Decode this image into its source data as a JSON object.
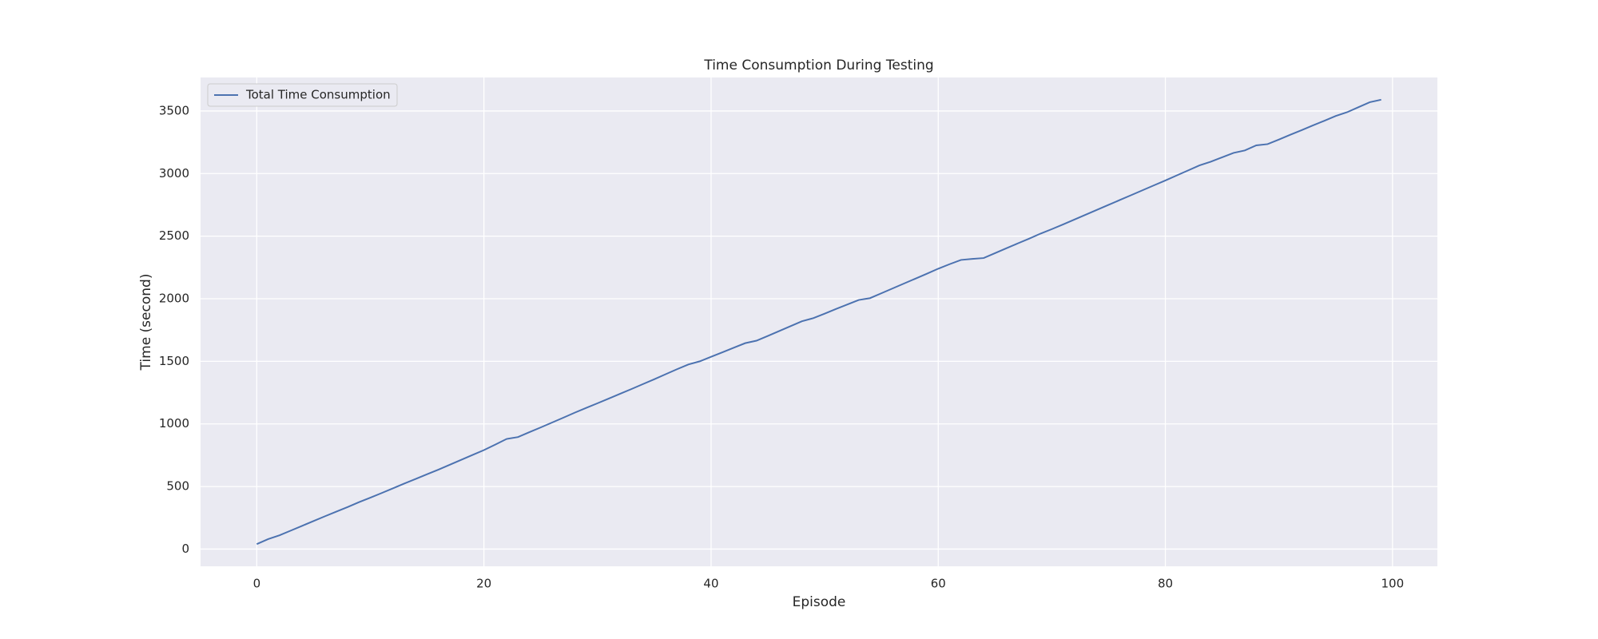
{
  "chart_data": {
    "type": "line",
    "title": "Time Consumption During Testing",
    "xlabel": "Episode",
    "ylabel": "Time (second)",
    "x": [
      0,
      1,
      2,
      3,
      4,
      5,
      6,
      7,
      8,
      9,
      10,
      11,
      12,
      13,
      14,
      15,
      16,
      17,
      18,
      19,
      20,
      21,
      22,
      23,
      24,
      25,
      26,
      27,
      28,
      29,
      30,
      31,
      32,
      33,
      34,
      35,
      36,
      37,
      38,
      39,
      40,
      41,
      42,
      43,
      44,
      45,
      46,
      47,
      48,
      49,
      50,
      51,
      52,
      53,
      54,
      55,
      56,
      57,
      58,
      59,
      60,
      61,
      62,
      63,
      64,
      65,
      66,
      67,
      68,
      69,
      70,
      71,
      72,
      73,
      74,
      75,
      76,
      77,
      78,
      79,
      80,
      81,
      82,
      83,
      84,
      85,
      86,
      87,
      88,
      89,
      90,
      91,
      92,
      93,
      94,
      95,
      96,
      97,
      98,
      99
    ],
    "series": [
      {
        "name": "Total Time Consumption",
        "color": "#4c72b0",
        "values": [
          40,
          80,
          110,
          148,
          186,
          224,
          262,
          299,
          336,
          375,
          411,
          448,
          486,
          524,
          561,
          598,
          635,
          674,
          713,
          752,
          791,
          835,
          880,
          895,
          934,
          972,
          1011,
          1050,
          1090,
          1128,
          1165,
          1203,
          1241,
          1279,
          1318,
          1357,
          1397,
          1437,
          1475,
          1500,
          1536,
          1572,
          1609,
          1645,
          1665,
          1703,
          1742,
          1781,
          1820,
          1845,
          1881,
          1918,
          1954,
          1990,
          2005,
          2044,
          2083,
          2122,
          2161,
          2200,
          2240,
          2276,
          2310,
          2318,
          2325,
          2364,
          2403,
          2442,
          2480,
          2520,
          2556,
          2594,
          2633,
          2672,
          2711,
          2750,
          2789,
          2828,
          2867,
          2906,
          2945,
          2985,
          3025,
          3065,
          3095,
          3130,
          3165,
          3185,
          3225,
          3235,
          3272,
          3310,
          3347,
          3385,
          3422,
          3460,
          3490,
          3530,
          3570,
          3590
        ]
      }
    ],
    "xlim": [
      -4.95,
      103.95
    ],
    "xticks": [
      0,
      20,
      40,
      60,
      80,
      100
    ],
    "ylim": [
      -137.5,
      3767.5
    ],
    "yticks": [
      0,
      500,
      1000,
      1500,
      2000,
      2500,
      3000,
      3500
    ],
    "grid": true,
    "legend": "upper left"
  }
}
